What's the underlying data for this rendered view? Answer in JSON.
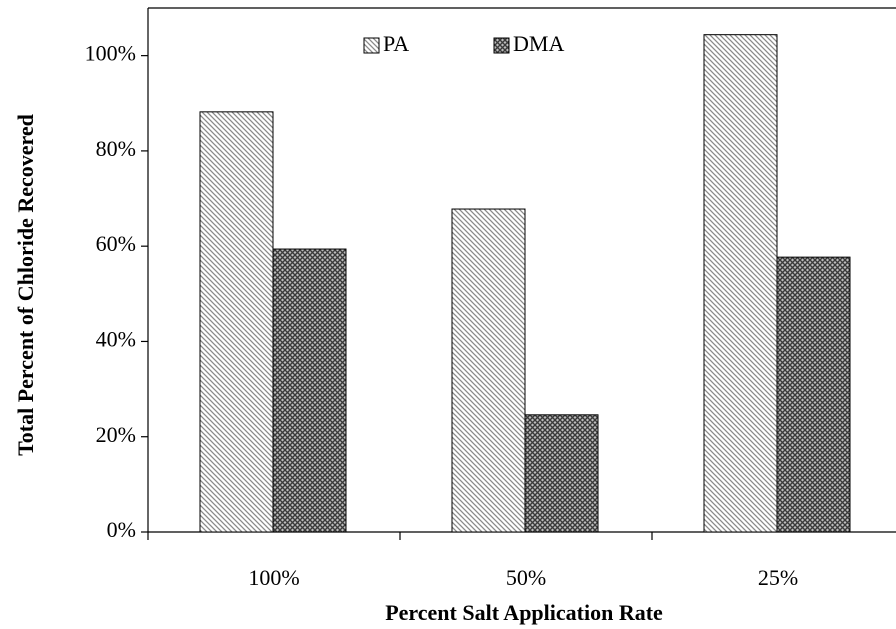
{
  "chart_data": {
    "type": "bar",
    "x_label": "Percent Salt Application Rate",
    "y_label": "Total Percent of Chloride Recovered",
    "categories": [
      "100%",
      "50%",
      "25%"
    ],
    "series": [
      {
        "name": "PA",
        "color": "#8a8a8a",
        "values": [
          88.2,
          67.8,
          104.4
        ]
      },
      {
        "name": "DMA",
        "color": "#3a3a3a",
        "values": [
          59.4,
          24.6,
          57.7
        ]
      }
    ],
    "ylim": [
      0,
      110
    ],
    "yticks": [
      {
        "value": 0,
        "label": "0%"
      },
      {
        "value": 20,
        "label": "20%"
      },
      {
        "value": 40,
        "label": "40%"
      },
      {
        "value": 60,
        "label": "60%"
      },
      {
        "value": 80,
        "label": "80%"
      },
      {
        "value": 100,
        "label": "100%"
      }
    ]
  }
}
